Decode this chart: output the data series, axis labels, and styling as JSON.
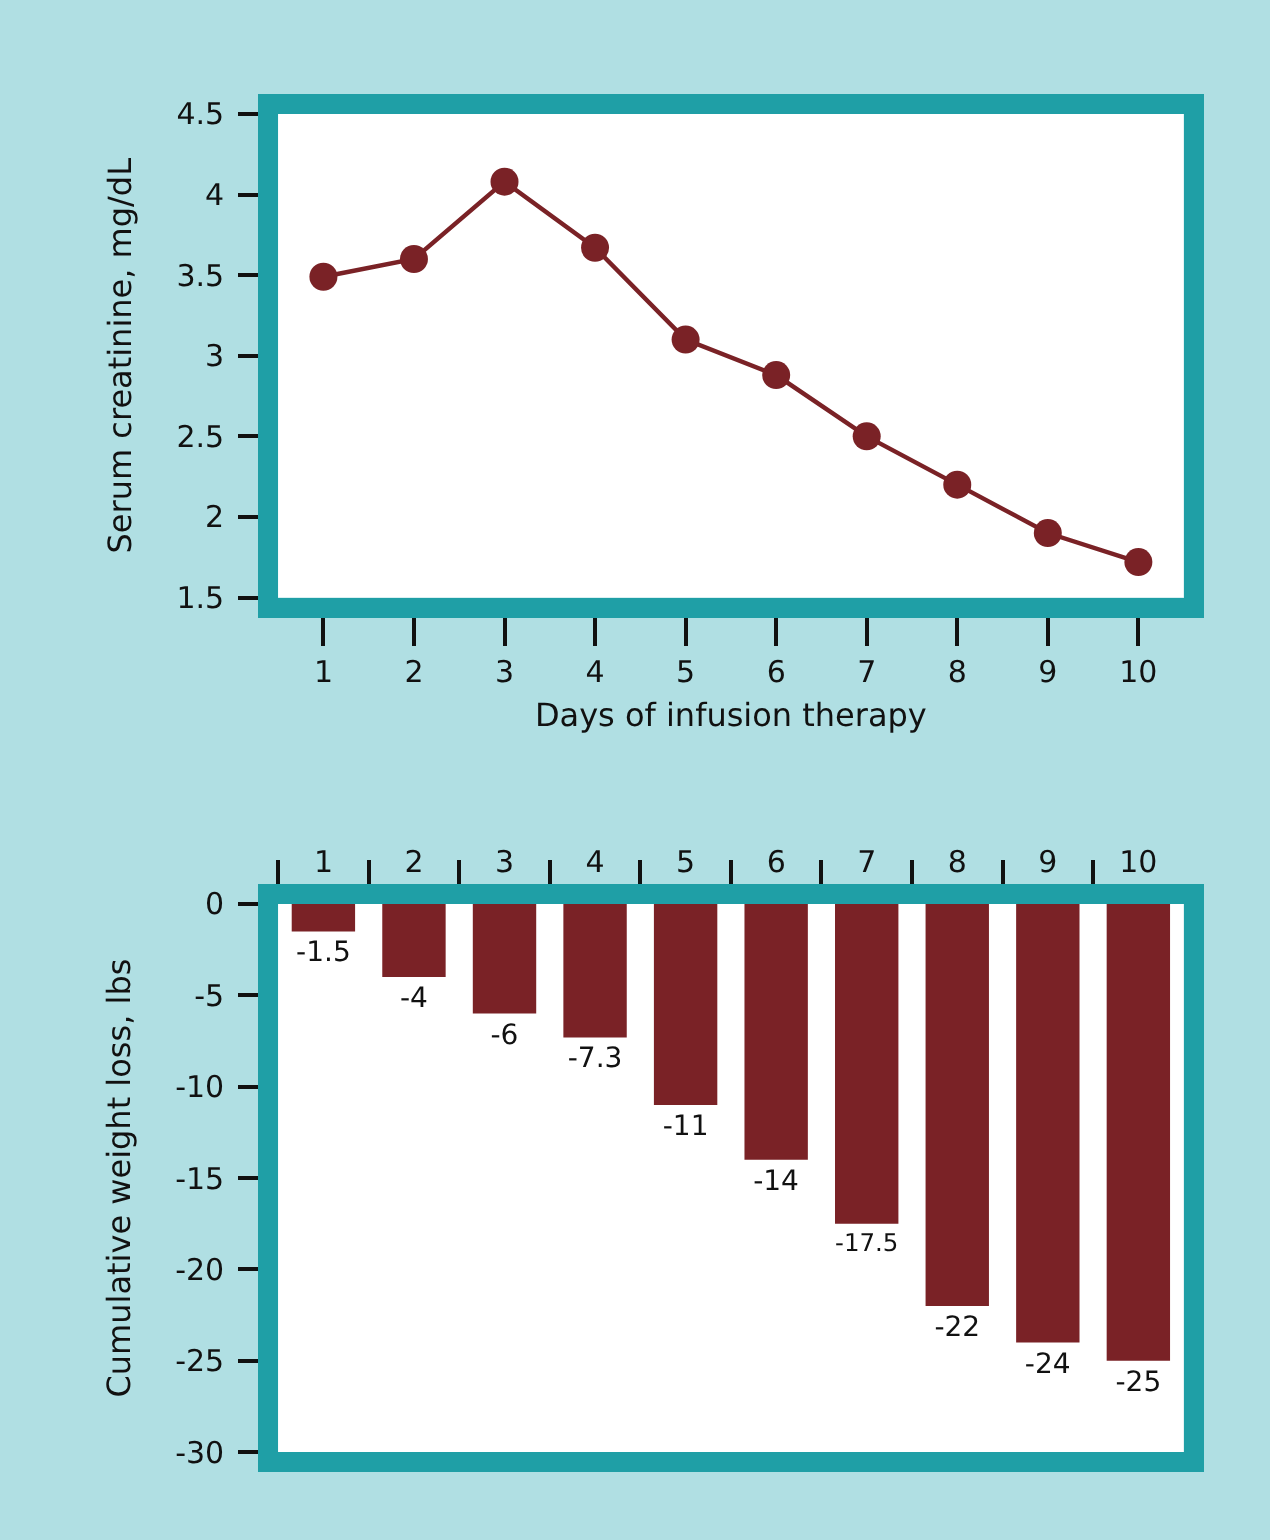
{
  "chart_data": [
    {
      "type": "line",
      "xlabel": "Days of infusion therapy",
      "ylabel": "Serum creatinine, mg/dL",
      "x": [
        1,
        2,
        3,
        4,
        5,
        6,
        7,
        8,
        9,
        10
      ],
      "series": [
        {
          "color": "#7a2226",
          "values": [
            3.49,
            3.6,
            4.08,
            3.67,
            3.1,
            2.88,
            2.5,
            2.2,
            1.9,
            1.72
          ]
        }
      ],
      "marker": "circle",
      "line_style": "solid",
      "xlim": [
        0.5,
        10.5
      ],
      "xticks": [
        1,
        2,
        3,
        4,
        5,
        6,
        7,
        8,
        9,
        10
      ],
      "ylim": [
        1.5,
        4.5
      ],
      "yticks": [
        1.5,
        2,
        2.5,
        3,
        3.5,
        4,
        4.5
      ],
      "grid": false
    },
    {
      "type": "bar",
      "ylabel": "Cumulative weight loss, lbs",
      "categories": [
        "1",
        "2",
        "3",
        "4",
        "5",
        "6",
        "7",
        "8",
        "9",
        "10"
      ],
      "series": [
        {
          "color": "#7a2226",
          "values": [
            -1.5,
            -4,
            -6,
            -7.3,
            -11,
            -14,
            -17.5,
            -22,
            -24,
            -25
          ]
        }
      ],
      "data_labels": true,
      "ylim": [
        -30,
        0
      ],
      "yticks": [
        -30,
        -25,
        -20,
        -15,
        -10,
        -5,
        0
      ],
      "grid": false
    }
  ]
}
